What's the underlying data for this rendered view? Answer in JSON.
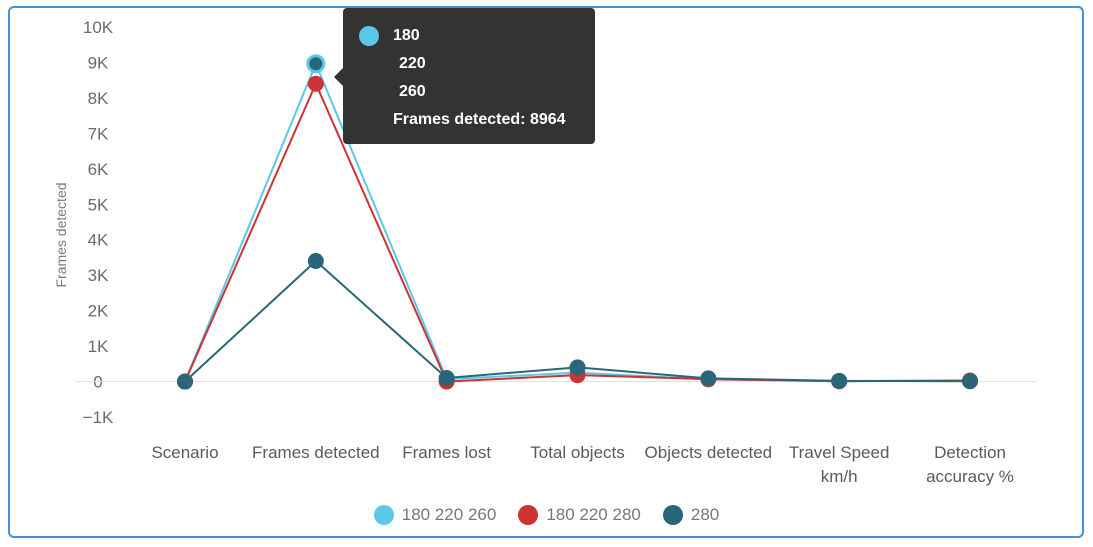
{
  "chart_data": {
    "type": "line",
    "categories": [
      "Scenario",
      "Frames detected",
      "Frames lost",
      "Total objects",
      "Objects detected",
      "Travel Speed km/h",
      "Detection accuracy %"
    ],
    "category_lines": [
      [
        "Scenario"
      ],
      [
        "Frames detected"
      ],
      [
        "Frames lost"
      ],
      [
        "Total objects"
      ],
      [
        "Objects detected"
      ],
      [
        "Travel Speed",
        "km/h"
      ],
      [
        "Detection",
        "accuracy %"
      ]
    ],
    "ylabel": "Frames detected",
    "ylim": [
      -1000,
      10000
    ],
    "yticks": [
      {
        "value": 10000,
        "label": "10K"
      },
      {
        "value": 9000,
        "label": "9K"
      },
      {
        "value": 8000,
        "label": "8K"
      },
      {
        "value": 7000,
        "label": "7K"
      },
      {
        "value": 6000,
        "label": "6K"
      },
      {
        "value": 5000,
        "label": "5K"
      },
      {
        "value": 4000,
        "label": "4K"
      },
      {
        "value": 3000,
        "label": "3K"
      },
      {
        "value": 2000,
        "label": "2K"
      },
      {
        "value": 1000,
        "label": "1K"
      },
      {
        "value": 0,
        "label": "0"
      },
      {
        "value": -1000,
        "label": "−1K"
      }
    ],
    "series": [
      {
        "name": "180 220 260",
        "color": "#5bc8e8",
        "values": [
          0,
          8964,
          70,
          250,
          60,
          10,
          20
        ]
      },
      {
        "name": "180 220 280",
        "color": "#cc3333",
        "values": [
          0,
          8400,
          0,
          180,
          70,
          10,
          30
        ]
      },
      {
        "name": "280",
        "color": "#2a6678",
        "values": [
          0,
          3400,
          100,
          400,
          90,
          20,
          10
        ]
      }
    ],
    "legend_position": "bottom",
    "grid": false
  },
  "tooltip": {
    "lines": [
      "180",
      "220",
      "260"
    ],
    "dot_color": "#5bc8e8",
    "summary": "Frames detected: 8964"
  }
}
